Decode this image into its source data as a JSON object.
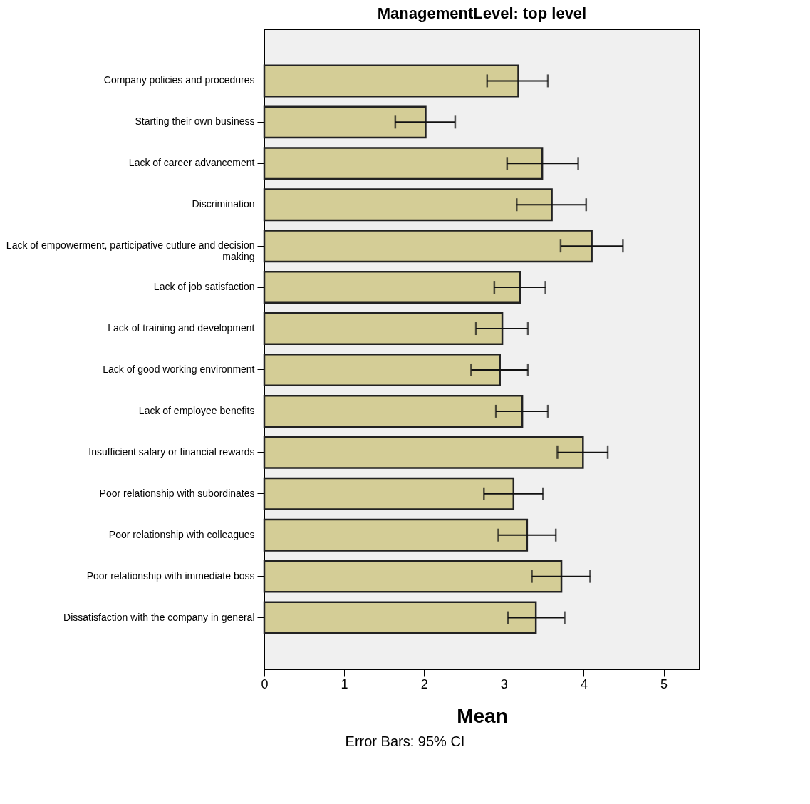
{
  "chart_data": {
    "type": "bar",
    "orientation": "horizontal",
    "title": "ManagementLevel: top level",
    "xlabel": "Mean",
    "categories": [
      "Company policies and procedures",
      "Starting their own business",
      "Lack of career advancement",
      "Discrimination",
      "Lack of empowerment, participative cutlure and decision making",
      "Lack of job satisfaction",
      "Lack of training and development",
      "Lack of good working environment",
      "Lack of employee benefits",
      "Insufficient salary or financial rewards",
      "Poor relationship with subordinates",
      "Poor relationship with colleagues",
      "Poor relationship with immediate boss",
      "Dissatisfaction with the company in general"
    ],
    "values": [
      3.18,
      2.02,
      3.48,
      3.6,
      4.1,
      3.2,
      2.98,
      2.95,
      3.23,
      3.99,
      3.12,
      3.29,
      3.72,
      3.4
    ],
    "errors": [
      [
        2.79,
        3.55
      ],
      [
        1.64,
        2.39
      ],
      [
        3.04,
        3.93
      ],
      [
        3.16,
        4.03
      ],
      [
        3.71,
        4.49
      ],
      [
        2.88,
        3.52
      ],
      [
        2.65,
        3.3
      ],
      [
        2.59,
        3.3
      ],
      [
        2.9,
        3.55
      ],
      [
        3.67,
        4.3
      ],
      [
        2.75,
        3.49
      ],
      [
        2.93,
        3.65
      ],
      [
        3.35,
        4.08
      ],
      [
        3.05,
        3.76
      ]
    ],
    "color": "#d4cd96",
    "xlim": [
      0,
      5.45
    ],
    "xticks": [
      0,
      1,
      2,
      3,
      4,
      5
    ],
    "grid": false,
    "annotations": [
      "Error Bars: 95% CI"
    ]
  }
}
